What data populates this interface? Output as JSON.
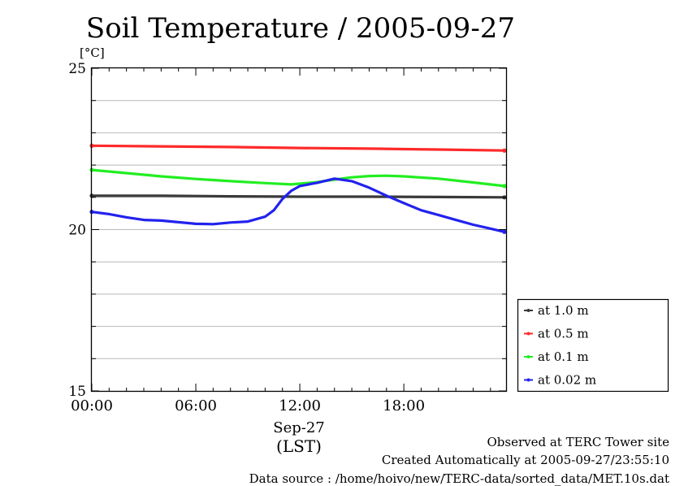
{
  "chart_data": {
    "type": "line",
    "title": "Soil Temperature / 2005-09-27",
    "ylabel": "[°C]",
    "xlabel": "(LST)",
    "date_label": "Sep-27",
    "x_unit": "hour",
    "xlim": [
      0,
      23.9
    ],
    "ylim": [
      15,
      25
    ],
    "x_ticks": [
      0,
      6,
      12,
      18
    ],
    "x_tick_labels": [
      "00:00",
      "06:00",
      "12:00",
      "18:00"
    ],
    "y_ticks": [
      15,
      20,
      25
    ],
    "y_tick_labels": [
      "15",
      "20",
      "25"
    ],
    "y_minor_ticks": [
      16,
      17,
      18,
      19,
      21,
      22,
      23,
      24
    ],
    "grid": true,
    "legend_position": "right",
    "series": [
      {
        "name": "at 1.0 m",
        "color": "#3a3a3a",
        "x": [
          0,
          4,
          8,
          12,
          16,
          20,
          23.8
        ],
        "y": [
          21.05,
          21.05,
          21.03,
          21.02,
          21.02,
          21.01,
          21.0
        ]
      },
      {
        "name": "at 0.5 m",
        "color": "#ff2a2a",
        "x": [
          0,
          4,
          8,
          12,
          16,
          20,
          23.8
        ],
        "y": [
          22.6,
          22.58,
          22.56,
          22.53,
          22.51,
          22.48,
          22.45
        ]
      },
      {
        "name": "at 0.1 m",
        "color": "#22ee22",
        "x": [
          0,
          2,
          4,
          6,
          8,
          10,
          11.5,
          13,
          14,
          15,
          16,
          17,
          18,
          20,
          22,
          23.8
        ],
        "y": [
          21.85,
          21.75,
          21.65,
          21.57,
          21.5,
          21.44,
          21.4,
          21.47,
          21.55,
          21.62,
          21.66,
          21.67,
          21.65,
          21.58,
          21.46,
          21.35
        ]
      },
      {
        "name": "at 0.02 m",
        "color": "#2222ee",
        "x": [
          0,
          1,
          2,
          3,
          4,
          5,
          6,
          7,
          8,
          9,
          10,
          10.5,
          11,
          11.5,
          12,
          12.5,
          13,
          14,
          15,
          16,
          17,
          18,
          19,
          20,
          21,
          22,
          23,
          23.8
        ],
        "y": [
          20.55,
          20.48,
          20.38,
          20.3,
          20.28,
          20.23,
          20.18,
          20.17,
          20.22,
          20.25,
          20.4,
          20.6,
          20.95,
          21.2,
          21.35,
          21.4,
          21.45,
          21.58,
          21.5,
          21.3,
          21.05,
          20.82,
          20.6,
          20.45,
          20.3,
          20.15,
          20.03,
          19.93
        ]
      }
    ]
  },
  "notes": {
    "site": "Observed at TERC Tower site",
    "created": "Created Automatically at 2005-09-27/23:55:10",
    "source": "Data source : /home/hoivo/new/TERC-data/sorted_data/MET.10s.dat"
  }
}
